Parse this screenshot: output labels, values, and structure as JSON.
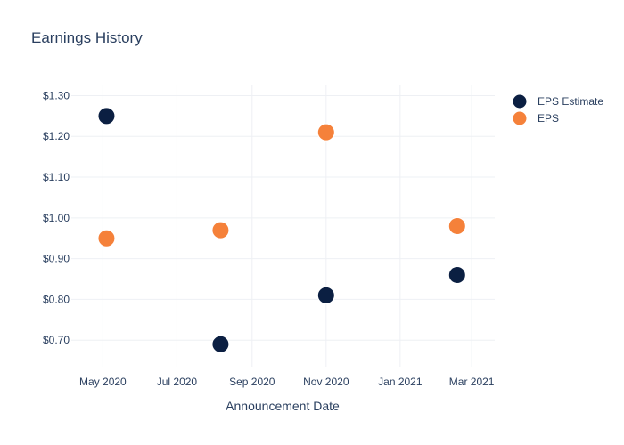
{
  "chart_data": {
    "type": "scatter",
    "title": "Earnings History",
    "xlabel": "Announcement Date",
    "ylabel": "",
    "x_ticks": [
      {
        "date": "2020-05-01",
        "label": "May 2020"
      },
      {
        "date": "2020-07-01",
        "label": "Jul 2020"
      },
      {
        "date": "2020-09-01",
        "label": "Sep 2020"
      },
      {
        "date": "2020-11-01",
        "label": "Nov 2020"
      },
      {
        "date": "2021-01-01",
        "label": "Jan 2021"
      },
      {
        "date": "2021-03-01",
        "label": "Mar 2021"
      }
    ],
    "y_ticks": [
      {
        "value": 0.7,
        "label": "$0.70"
      },
      {
        "value": 0.8,
        "label": "$0.80"
      },
      {
        "value": 0.9,
        "label": "$0.90"
      },
      {
        "value": 1.0,
        "label": "$1.00"
      },
      {
        "value": 1.1,
        "label": "$1.10"
      },
      {
        "value": 1.2,
        "label": "$1.20"
      },
      {
        "value": 1.3,
        "label": "$1.30"
      }
    ],
    "xlim": [
      "2020-04-05",
      "2021-03-20"
    ],
    "ylim": [
      0.635,
      1.325
    ],
    "grid": true,
    "legend_position": "top-right",
    "series": [
      {
        "name": "EPS Estimate",
        "color": "#0b1f42",
        "points": [
          {
            "x": "2020-05-04",
            "y": 1.25
          },
          {
            "x": "2020-08-06",
            "y": 0.69
          },
          {
            "x": "2020-11-01",
            "y": 0.81
          },
          {
            "x": "2021-02-17",
            "y": 0.86
          }
        ]
      },
      {
        "name": "EPS",
        "color": "#f5813a",
        "points": [
          {
            "x": "2020-05-04",
            "y": 0.95
          },
          {
            "x": "2020-08-06",
            "y": 0.97
          },
          {
            "x": "2020-11-01",
            "y": 1.21
          },
          {
            "x": "2021-02-17",
            "y": 0.98
          }
        ]
      }
    ]
  }
}
